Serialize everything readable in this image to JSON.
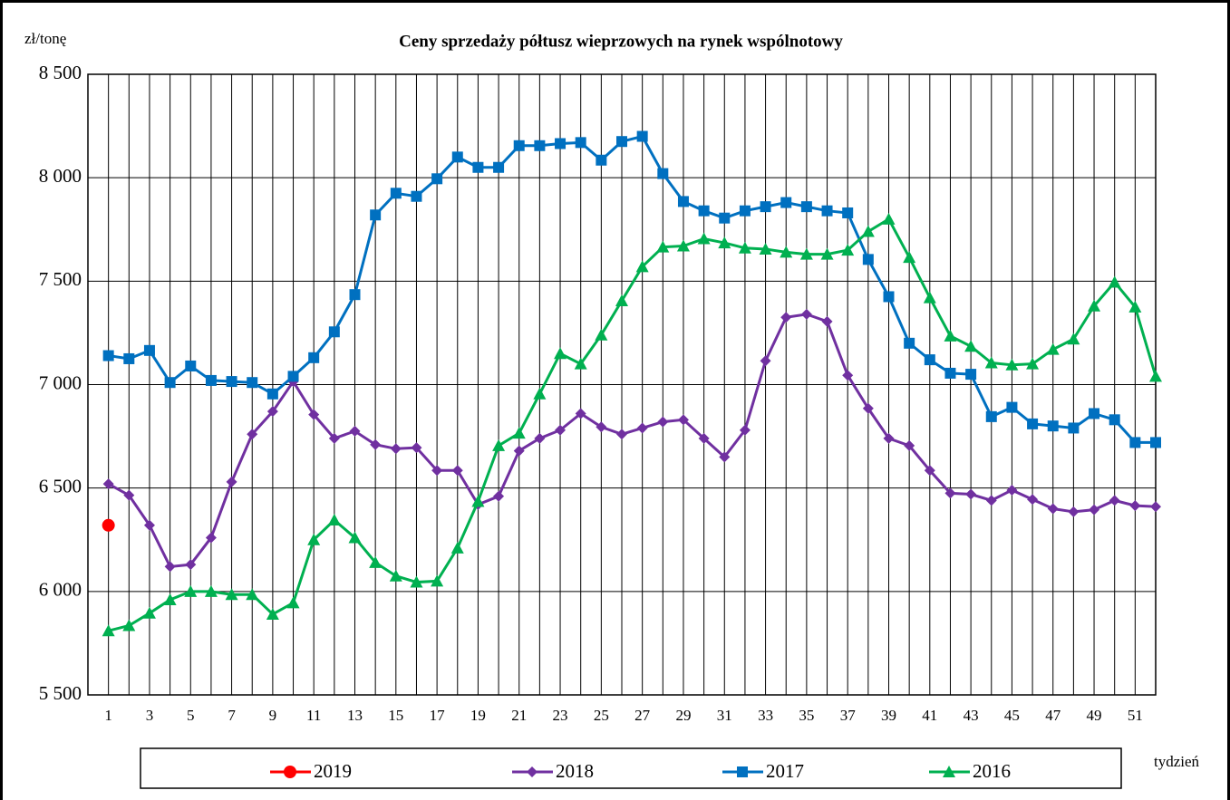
{
  "chart_data": {
    "type": "line",
    "title": "Ceny sprzedaży półtusz wieprzowych  na rynek wspólnotowy",
    "y_label": "zł/tonę",
    "x_label": "tydzień",
    "categories": [
      1,
      null,
      3,
      null,
      5,
      null,
      7,
      null,
      9,
      null,
      11,
      null,
      13,
      null,
      15,
      null,
      17,
      null,
      19,
      null,
      21,
      null,
      23,
      null,
      25,
      null,
      27,
      null,
      29,
      null,
      31,
      null,
      33,
      null,
      35,
      null,
      37,
      null,
      39,
      null,
      41,
      null,
      43,
      null,
      45,
      null,
      47,
      null,
      49,
      null,
      51,
      null
    ],
    "ylim": [
      5500,
      8500
    ],
    "yticks": [
      {
        "value": 5500,
        "label": "5 500"
      },
      {
        "value": 6000,
        "label": "6 000"
      },
      {
        "value": 6500,
        "label": "6 500"
      },
      {
        "value": 7000,
        "label": "7 000"
      },
      {
        "value": 7500,
        "label": "7 500"
      },
      {
        "value": 8000,
        "label": "8 000"
      },
      {
        "value": 8500,
        "label": "8 500"
      }
    ],
    "grid": true,
    "legend": "bottom",
    "series": [
      {
        "name": "2019",
        "color": "#ff0000",
        "marker": "circle",
        "values": [
          6320,
          null,
          null,
          null,
          null,
          null,
          null,
          null,
          null,
          null,
          null,
          null,
          null,
          null,
          null,
          null,
          null,
          null,
          null,
          null,
          null,
          null,
          null,
          null,
          null,
          null,
          null,
          null,
          null,
          null,
          null,
          null,
          null,
          null,
          null,
          null,
          null,
          null,
          null,
          null,
          null,
          null,
          null,
          null,
          null,
          null,
          null,
          null,
          null,
          null,
          null,
          null
        ]
      },
      {
        "name": "2018",
        "color": "#7030a0",
        "marker": "diamond",
        "values": [
          6520,
          6465,
          6320,
          6120,
          6130,
          6260,
          6530,
          6760,
          6870,
          7015,
          6855,
          6740,
          6775,
          6710,
          6690,
          6695,
          6585,
          6585,
          6420,
          6460,
          6680,
          6740,
          6780,
          6860,
          6795,
          6760,
          6790,
          6820,
          6830,
          6740,
          6650,
          6780,
          7115,
          7325,
          7340,
          7305,
          7045,
          6885,
          6740,
          6705,
          6585,
          6475,
          6470,
          6440,
          6490,
          6445,
          6400,
          6385,
          6395,
          6440,
          6415,
          6410
        ]
      },
      {
        "name": "2017",
        "color": "#0070c0",
        "marker": "square",
        "values": [
          7140,
          7125,
          7165,
          7010,
          7090,
          7020,
          7015,
          7010,
          6955,
          7040,
          7130,
          7255,
          7435,
          7820,
          7925,
          7910,
          7995,
          8100,
          8050,
          8050,
          8155,
          8155,
          8165,
          8170,
          8085,
          8175,
          8200,
          8020,
          7885,
          7840,
          7805,
          7840,
          7860,
          7880,
          7860,
          7840,
          7830,
          7605,
          7425,
          7200,
          7120,
          7055,
          7050,
          6845,
          6890,
          6810,
          6800,
          6790,
          6860,
          6830,
          6720,
          6720
        ]
      },
      {
        "name": "2016",
        "color": "#00b050",
        "marker": "triangle",
        "values": [
          5810,
          5835,
          5895,
          5960,
          6000,
          6000,
          5985,
          5985,
          5890,
          5945,
          6250,
          6345,
          6260,
          6140,
          6075,
          6045,
          6050,
          6210,
          6435,
          6705,
          6765,
          6955,
          7150,
          7100,
          7240,
          7405,
          7570,
          7665,
          7670,
          7705,
          7685,
          7660,
          7655,
          7640,
          7630,
          7630,
          7650,
          7740,
          7800,
          7615,
          7420,
          7235,
          7185,
          7105,
          7095,
          7100,
          7170,
          7220,
          7380,
          7495,
          7375,
          7040
        ]
      }
    ]
  }
}
